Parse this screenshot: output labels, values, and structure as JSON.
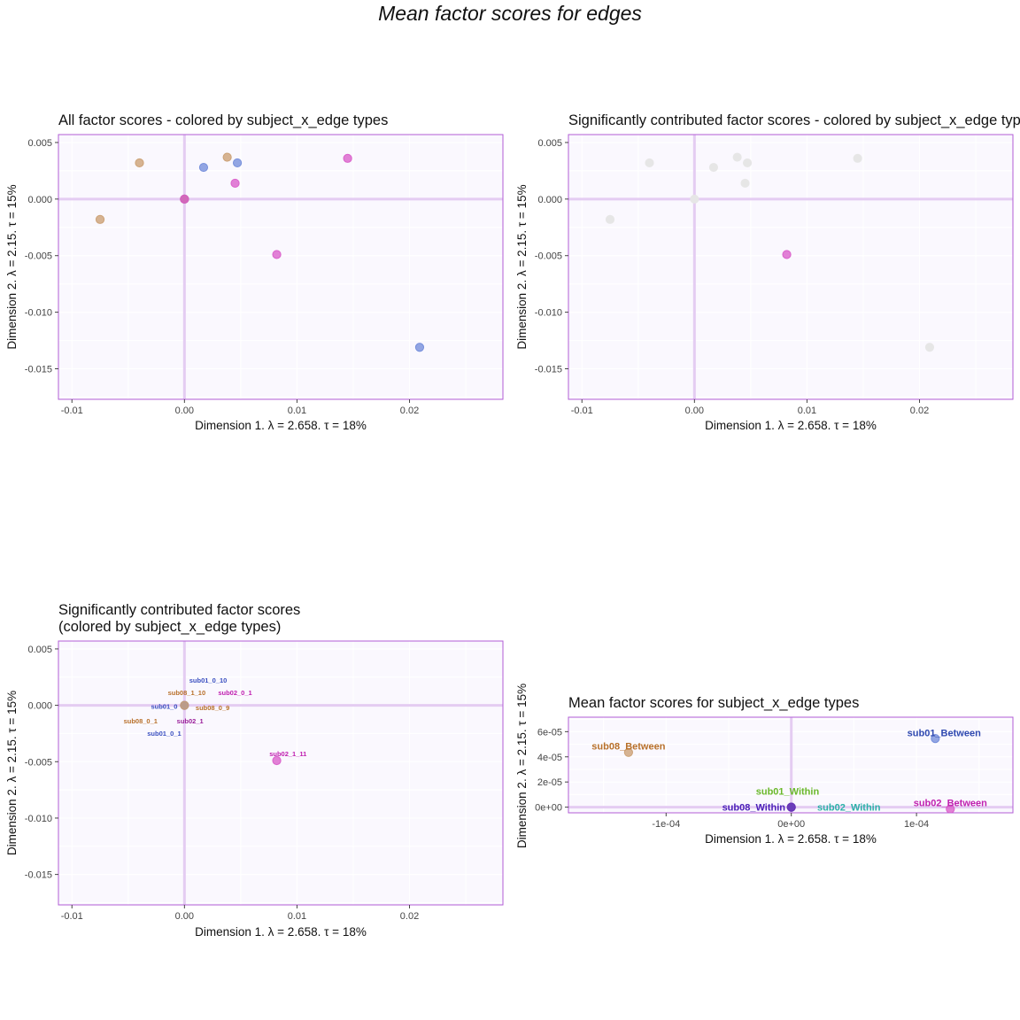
{
  "title": "Mean factor scores for edges",
  "colors": {
    "blue": "#6F89D9",
    "tan": "#C99C6E",
    "magenta": "#D858C8",
    "grey": "#E6E6E6",
    "crosshair": "#E4CCF2",
    "panel_bg": "#FAF8FE",
    "panel_border": "#B25CD6",
    "grid": "#FFFFFF"
  },
  "axis_labels": {
    "x": "Dimension 1.   λ = 2.658.  τ = 18%",
    "y": "Dimension 2.   λ = 2.15.  τ = 15%"
  },
  "chart_data": [
    {
      "type": "scatter",
      "title": "All factor scores - colored by subject_x_edge types",
      "xlim": [
        -0.0112,
        0.0283
      ],
      "ylim": [
        -0.0177,
        0.0057
      ],
      "xticks": [
        "-0.01",
        "0.00",
        "0.01",
        "0.02"
      ],
      "xtick_values": [
        -0.01,
        0,
        0.01,
        0.02
      ],
      "yticks": [
        "0.005",
        "0.000",
        "-0.005",
        "-0.010",
        "-0.015"
      ],
      "ytick_values": [
        0.005,
        0,
        -0.005,
        -0.01,
        -0.015
      ],
      "points": [
        {
          "x": -0.0075,
          "y": -0.0018,
          "color": "tan"
        },
        {
          "x": -0.004,
          "y": 0.0032,
          "color": "tan"
        },
        {
          "x": 0.0017,
          "y": 0.0028,
          "color": "blue"
        },
        {
          "x": 0.0038,
          "y": 0.0037,
          "color": "tan"
        },
        {
          "x": 0.0047,
          "y": 0.0032,
          "color": "blue"
        },
        {
          "x": 0.0045,
          "y": 0.0014,
          "color": "magenta"
        },
        {
          "x": 0.0145,
          "y": 0.0036,
          "color": "magenta"
        },
        {
          "x": 0.0082,
          "y": -0.0049,
          "color": "magenta"
        },
        {
          "x": 0.0209,
          "y": -0.0131,
          "color": "blue"
        },
        {
          "x": 0.0,
          "y": 0.0,
          "color": "blue"
        },
        {
          "x": 0.0,
          "y": 0.0,
          "color": "tan"
        },
        {
          "x": 0.0,
          "y": 0.0,
          "color": "magenta"
        }
      ]
    },
    {
      "type": "scatter",
      "title": "Significantly contributed factor scores - colored by subject_x_edge types",
      "xlim": [
        -0.0112,
        0.0283
      ],
      "ylim": [
        -0.0177,
        0.0057
      ],
      "xticks": [
        "-0.01",
        "0.00",
        "0.01",
        "0.02"
      ],
      "xtick_values": [
        -0.01,
        0,
        0.01,
        0.02
      ],
      "yticks": [
        "0.005",
        "0.000",
        "-0.005",
        "-0.010",
        "-0.015"
      ],
      "ytick_values": [
        0.005,
        0,
        -0.005,
        -0.01,
        -0.015
      ],
      "points": [
        {
          "x": -0.0075,
          "y": -0.0018,
          "color": "grey"
        },
        {
          "x": -0.004,
          "y": 0.0032,
          "color": "grey"
        },
        {
          "x": 0.0017,
          "y": 0.0028,
          "color": "grey"
        },
        {
          "x": 0.0038,
          "y": 0.0037,
          "color": "grey"
        },
        {
          "x": 0.0047,
          "y": 0.0032,
          "color": "grey"
        },
        {
          "x": 0.0045,
          "y": 0.0014,
          "color": "grey"
        },
        {
          "x": 0.0145,
          "y": 0.0036,
          "color": "grey"
        },
        {
          "x": 0.0209,
          "y": -0.0131,
          "color": "grey"
        },
        {
          "x": 0.0,
          "y": 0.0,
          "color": "grey"
        },
        {
          "x": 0.0082,
          "y": -0.0049,
          "color": "magenta"
        }
      ]
    },
    {
      "type": "scatter",
      "title": [
        "Significantly contributed factor scores",
        "(colored by subject_x_edge types)"
      ],
      "xlim": [
        -0.0112,
        0.0283
      ],
      "ylim": [
        -0.0177,
        0.0057
      ],
      "xticks": [
        "-0.01",
        "0.00",
        "0.01",
        "0.02"
      ],
      "xtick_values": [
        -0.01,
        0,
        0.01,
        0.02
      ],
      "yticks": [
        "0.005",
        "0.000",
        "-0.005",
        "-0.010",
        "-0.015"
      ],
      "ytick_values": [
        0.005,
        0,
        -0.005,
        -0.01,
        -0.015
      ],
      "points": [
        {
          "x": 0.0,
          "y": 0.0,
          "color": "blue"
        },
        {
          "x": 0.0,
          "y": 0.0,
          "color": "tan"
        },
        {
          "x": 0.0082,
          "y": -0.0049,
          "color": "magenta"
        }
      ],
      "labels": [
        {
          "text": "sub01_0_10",
          "x": 0.0021,
          "y": 0.0022,
          "color": "#3A4FC0"
        },
        {
          "text": "sub08_1_10",
          "x": 0.0002,
          "y": 0.0011,
          "color": "#B8702A"
        },
        {
          "text": "sub02_0_1",
          "x": 0.0045,
          "y": 0.0011,
          "color": "#C020B0"
        },
        {
          "text": "sub01_0",
          "x": -0.0018,
          "y": -0.0001,
          "color": "#3A4FC0"
        },
        {
          "text": "sub08_0_9",
          "x": 0.0025,
          "y": -0.0002,
          "color": "#B8702A"
        },
        {
          "text": "sub08_0_1",
          "x": -0.0039,
          "y": -0.0014,
          "color": "#B8702A"
        },
        {
          "text": "sub02_1",
          "x": 0.0005,
          "y": -0.0014,
          "color": "#9A1E9A"
        },
        {
          "text": "sub01_0_1",
          "x": -0.0018,
          "y": -0.0025,
          "color": "#3A4FC0"
        },
        {
          "text": "sub02_1_11",
          "x": 0.0092,
          "y": -0.0043,
          "color": "#C020B0"
        }
      ]
    },
    {
      "type": "scatter",
      "title": "Mean factor scores for subject_x_edge types",
      "xlim": [
        -0.000178,
        0.000177
      ],
      "ylim": [
        -4.5e-06,
        7.15e-05
      ],
      "xticks": [
        "-1e-04",
        "0e+00",
        "1e-04"
      ],
      "xtick_values": [
        -0.0001,
        0,
        0.0001
      ],
      "yticks": [
        "6e-05",
        "4e-05",
        "2e-05",
        "0e+00"
      ],
      "ytick_values": [
        6e-05,
        4e-05,
        2e-05,
        0
      ],
      "points": [
        {
          "x": -0.00013,
          "y": 4.35e-05,
          "color": "tan"
        },
        {
          "x": 0.000115,
          "y": 5.45e-05,
          "color": "blue"
        },
        {
          "x": 0.000127,
          "y": -1.5e-06,
          "color": "magenta"
        },
        {
          "x": 0.0,
          "y": 0.0,
          "color": "#3B55A8"
        },
        {
          "x": 0.0,
          "y": 0.0,
          "color": "#6B2BB8"
        }
      ],
      "labels": [
        {
          "text": "sub08_Between",
          "x": -0.00013,
          "y": 4.85e-05,
          "color": "#B8702A"
        },
        {
          "text": "sub01_Between",
          "x": 0.000122,
          "y": 5.9e-05,
          "color": "#2F49B0"
        },
        {
          "text": "sub01_Within",
          "x": -3e-06,
          "y": 1.25e-05,
          "color": "#6AB82A"
        },
        {
          "text": "sub08_Within",
          "x": -3e-05,
          "y": 0.0,
          "color": "#4A1EB8"
        },
        {
          "text": "sub02_Within",
          "x": 4.6e-05,
          "y": 0.0,
          "color": "#2BB0A8"
        },
        {
          "text": "sub02_Between",
          "x": 0.000127,
          "y": 3.5e-06,
          "color": "#C020B0"
        }
      ]
    }
  ]
}
